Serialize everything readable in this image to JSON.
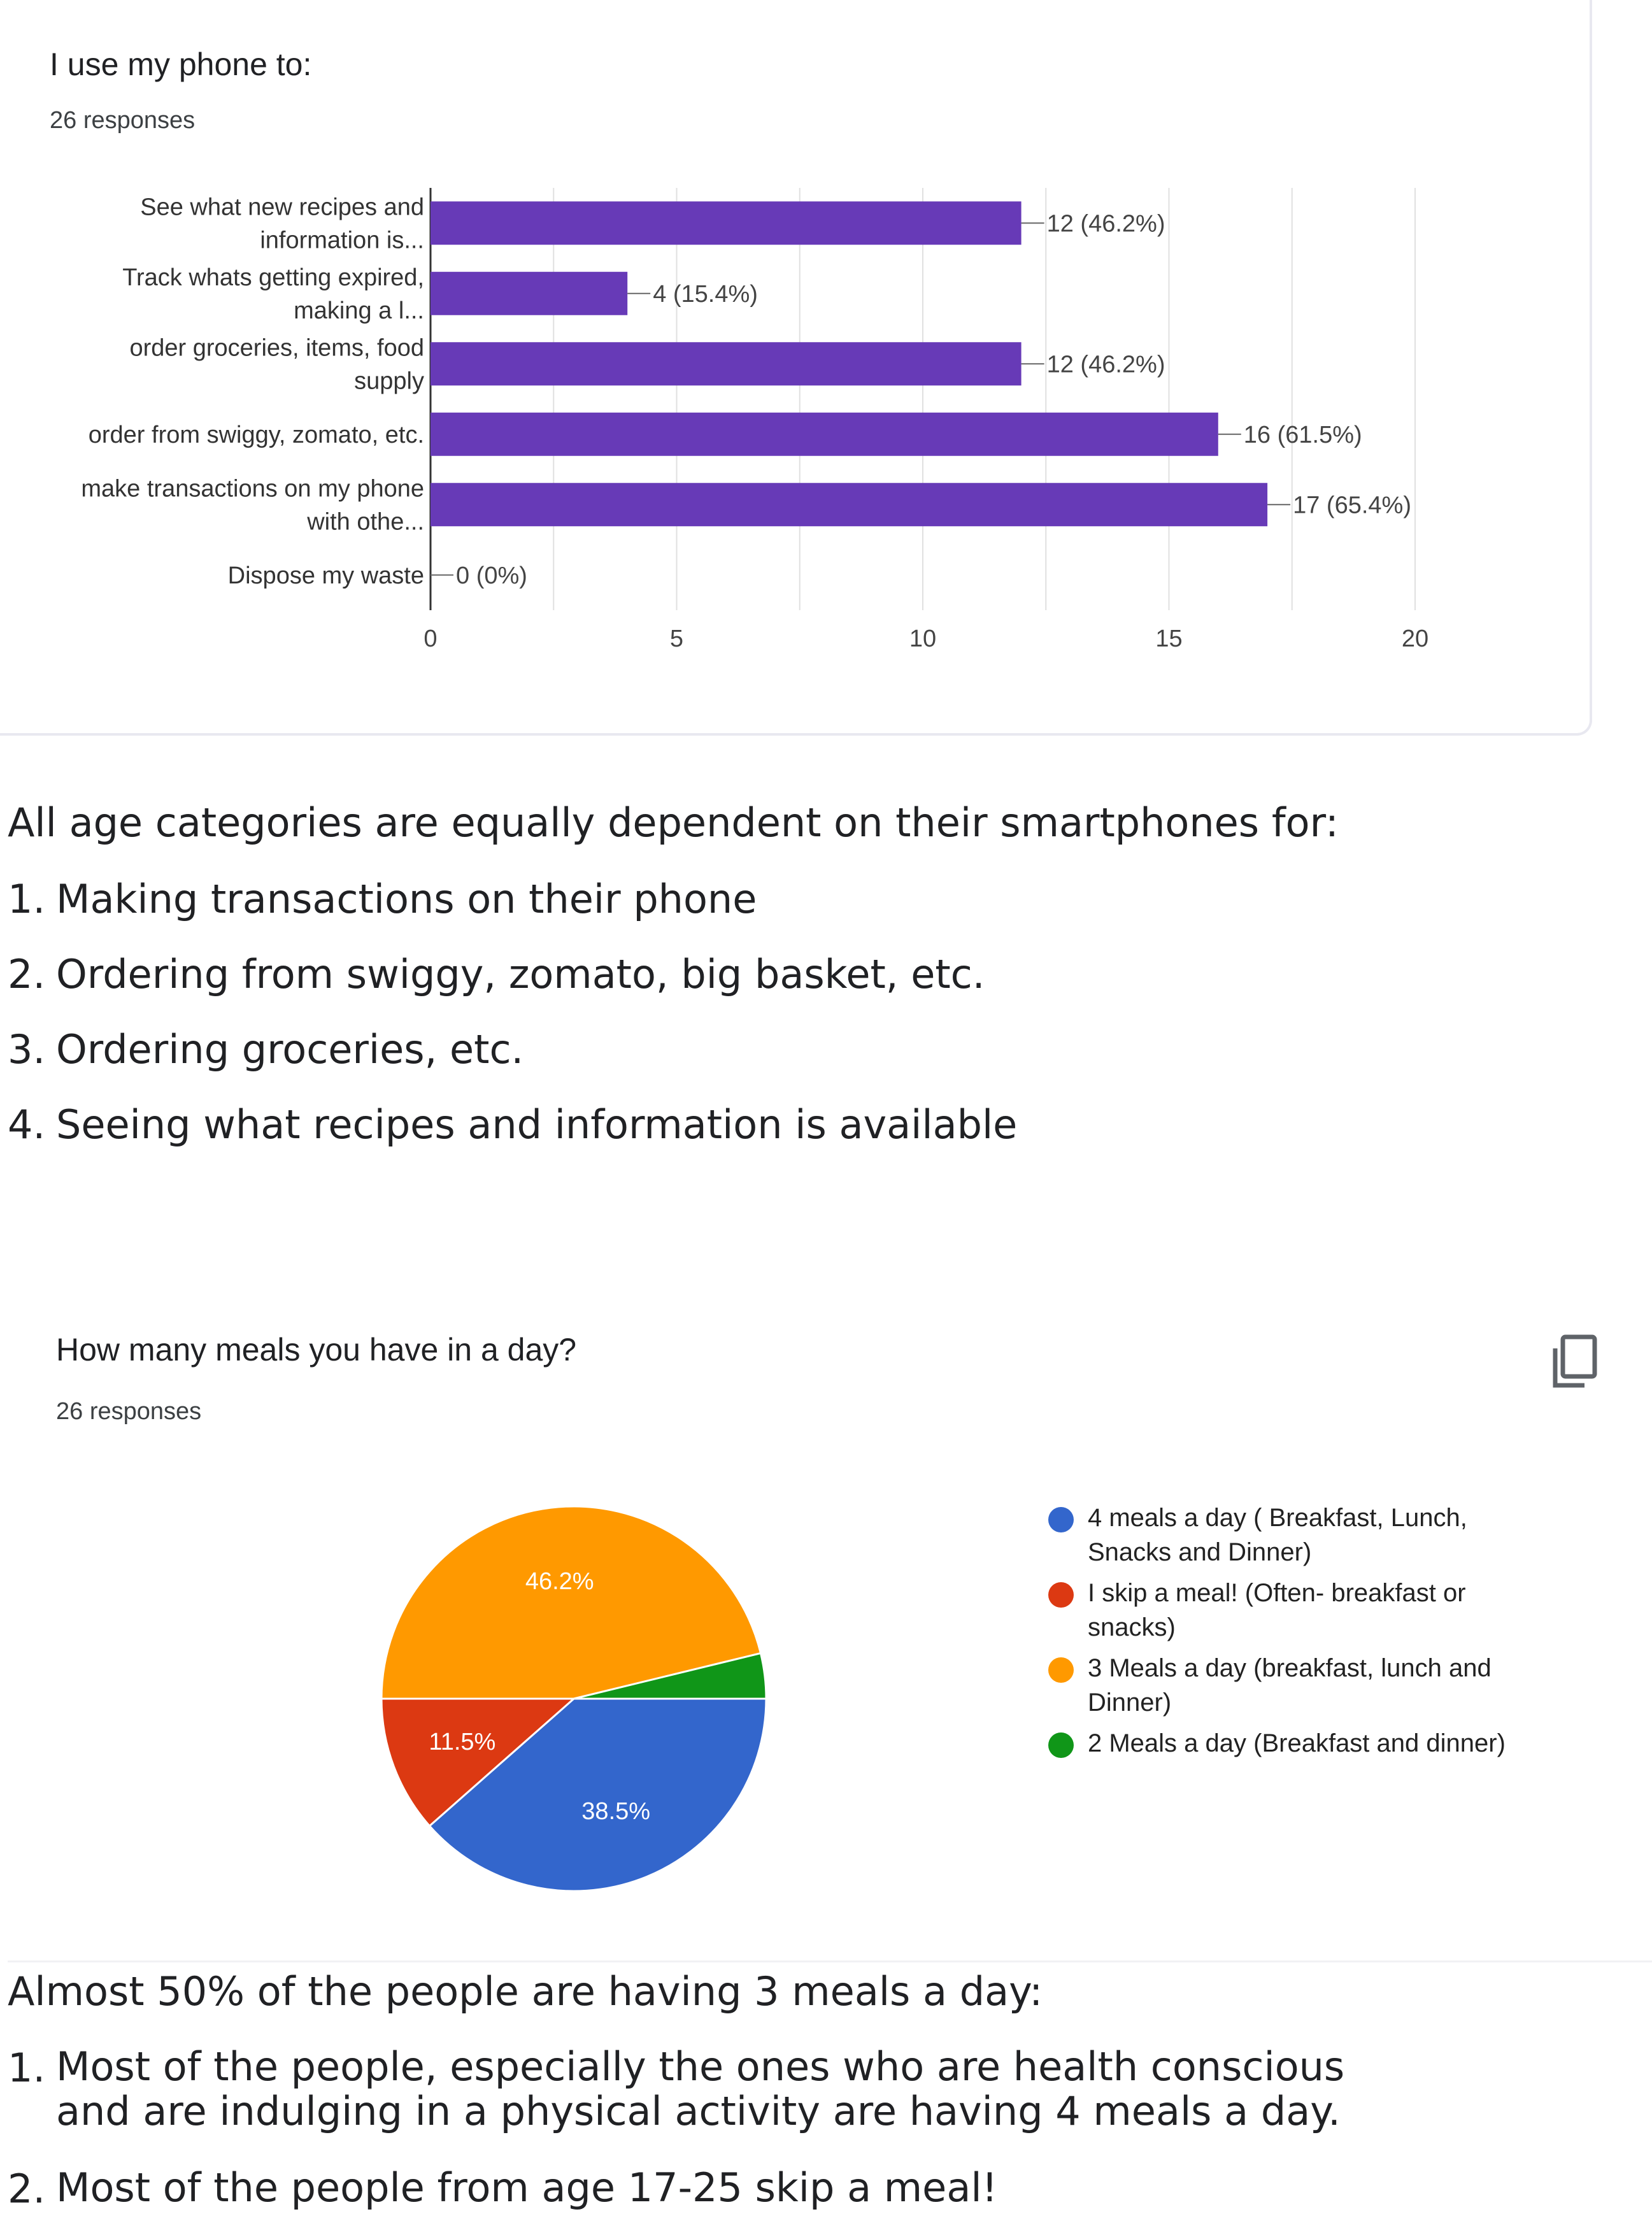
{
  "bar_card": {
    "title": "I use my phone to:",
    "responses": "26 responses"
  },
  "chart_data": [
    {
      "type": "bar",
      "orientation": "horizontal",
      "title": "I use my phone to:",
      "categories": [
        [
          "See what new recipes and",
          "information is..."
        ],
        [
          "Track whats getting expired,",
          "making a l..."
        ],
        [
          "order groceries, items, food",
          "supply"
        ],
        [
          "order from swiggy, zomato, etc."
        ],
        [
          "make transactions on my phone",
          "with othe..."
        ],
        [
          "Dispose my waste"
        ]
      ],
      "values": [
        12,
        4,
        12,
        16,
        17,
        0
      ],
      "data_labels": [
        "12 (46.2%)",
        "4 (15.4%)",
        "12 (46.2%)",
        "16 (61.5%)",
        "17 (65.4%)",
        "0 (0%)"
      ],
      "xlim": [
        0,
        20
      ],
      "xticks": [
        0,
        5,
        10,
        15,
        20
      ],
      "grid": true,
      "bar_color": "#673ab7"
    },
    {
      "type": "pie",
      "title": "How many meals you have in a day?",
      "slices": [
        {
          "name": "4 meals a day ( Breakfast, Lunch, Snacks and Dinner)",
          "value": 38.5,
          "label": "38.5%",
          "color": "#3366cc"
        },
        {
          "name": "I skip a meal! (Often- breakfast or snacks)",
          "value": 11.5,
          "label": "11.5%",
          "color": "#dc3912"
        },
        {
          "name": "3 Meals a day (breakfast, lunch and Dinner)",
          "value": 46.2,
          "label": "46.2%",
          "color": "#ff9900"
        },
        {
          "name": "2 Meals a day (Breakfast and dinner)",
          "value": 3.8,
          "label": "",
          "color": "#109618"
        }
      ],
      "legend_placement": "right"
    }
  ],
  "section1": {
    "heading": "All age categories are equally dependent on their smartphones for:",
    "items": [
      {
        "num": "1.",
        "text": "Making transactions on their phone"
      },
      {
        "num": "2.",
        "text": "Ordering from swiggy, zomato, big basket, etc."
      },
      {
        "num": "3.",
        "text": "Ordering groceries, etc."
      },
      {
        "num": "4.",
        "text": "Seeing what recipes and information is available"
      }
    ]
  },
  "pie_card": {
    "title": "How many meals you have in a day?",
    "responses": "26 responses",
    "copy_icon": "copy-icon"
  },
  "section2": {
    "heading": "Almost 50% of the people are having 3 meals a day:",
    "items": [
      {
        "num": "1.",
        "line1": "Most of the people, especially the ones who are health conscious",
        "line2": "and are indulging in a physical activity are having 4 meals a day."
      },
      {
        "num": "2.",
        "line1": "Most of the people from age 17-25 skip a meal!"
      }
    ]
  }
}
